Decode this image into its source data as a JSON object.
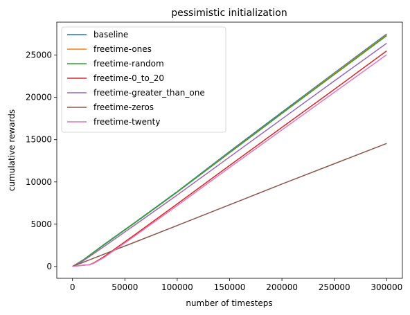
{
  "chart_data": {
    "type": "line",
    "title": "pessimistic initialization",
    "xlabel": "number of timesteps",
    "ylabel": "cumulative rewards",
    "xlim": [
      -15000,
      315000
    ],
    "ylim": [
      -1400,
      28900
    ],
    "xticks": [
      0,
      50000,
      100000,
      150000,
      200000,
      250000,
      300000
    ],
    "xtick_labels": [
      "0",
      "50000",
      "100000",
      "150000",
      "200000",
      "250000",
      "300000"
    ],
    "yticks": [
      0,
      5000,
      10000,
      15000,
      20000,
      25000
    ],
    "ytick_labels": [
      "0",
      "5000",
      "10000",
      "15000",
      "20000",
      "25000"
    ],
    "grid": false,
    "legend_position": "top-left",
    "series": [
      {
        "name": "baseline",
        "color": "#1f77b4",
        "x": [
          0,
          10000,
          30000,
          60000,
          100000,
          150000,
          200000,
          250000,
          300000
        ],
        "y": [
          0,
          750,
          2600,
          5250,
          8850,
          13600,
          18250,
          22900,
          27500
        ]
      },
      {
        "name": "freetime-ones",
        "color": "#ff7f0e",
        "x": [
          0,
          10000,
          30000,
          60000,
          100000,
          150000,
          200000,
          250000,
          300000
        ],
        "y": [
          0,
          750,
          2550,
          5200,
          8800,
          13500,
          18150,
          22800,
          27400
        ]
      },
      {
        "name": "freetime-random",
        "color": "#2ca02c",
        "x": [
          0,
          10000,
          30000,
          60000,
          100000,
          150000,
          200000,
          250000,
          300000
        ],
        "y": [
          0,
          750,
          2550,
          5200,
          8800,
          13450,
          18100,
          22700,
          27300
        ]
      },
      {
        "name": "freetime-0_to_20",
        "color": "#d62728",
        "x": [
          0,
          10000,
          16000,
          20000,
          30000,
          60000,
          100000,
          150000,
          200000,
          250000,
          300000
        ],
        "y": [
          0,
          150,
          200,
          400,
          1150,
          3800,
          7400,
          11950,
          16450,
          20950,
          25500
        ]
      },
      {
        "name": "freetime-greater_than_one",
        "color": "#9467bd",
        "x": [
          0,
          10000,
          30000,
          60000,
          100000,
          150000,
          200000,
          250000,
          300000
        ],
        "y": [
          0,
          650,
          2350,
          4950,
          8450,
          12950,
          17450,
          21950,
          26400
        ]
      },
      {
        "name": "freetime-zeros",
        "color": "#8c564b",
        "x": [
          0,
          10000,
          30000,
          60000,
          100000,
          150000,
          200000,
          250000,
          300000
        ],
        "y": [
          0,
          480,
          1450,
          2900,
          4850,
          7300,
          9750,
          12150,
          14550
        ]
      },
      {
        "name": "freetime-twenty",
        "color": "#e377c2",
        "x": [
          0,
          10000,
          16000,
          20000,
          30000,
          60000,
          100000,
          150000,
          200000,
          250000,
          300000
        ],
        "y": [
          0,
          150,
          200,
          350,
          1050,
          3650,
          7200,
          11700,
          16150,
          20600,
          25050
        ]
      }
    ]
  }
}
